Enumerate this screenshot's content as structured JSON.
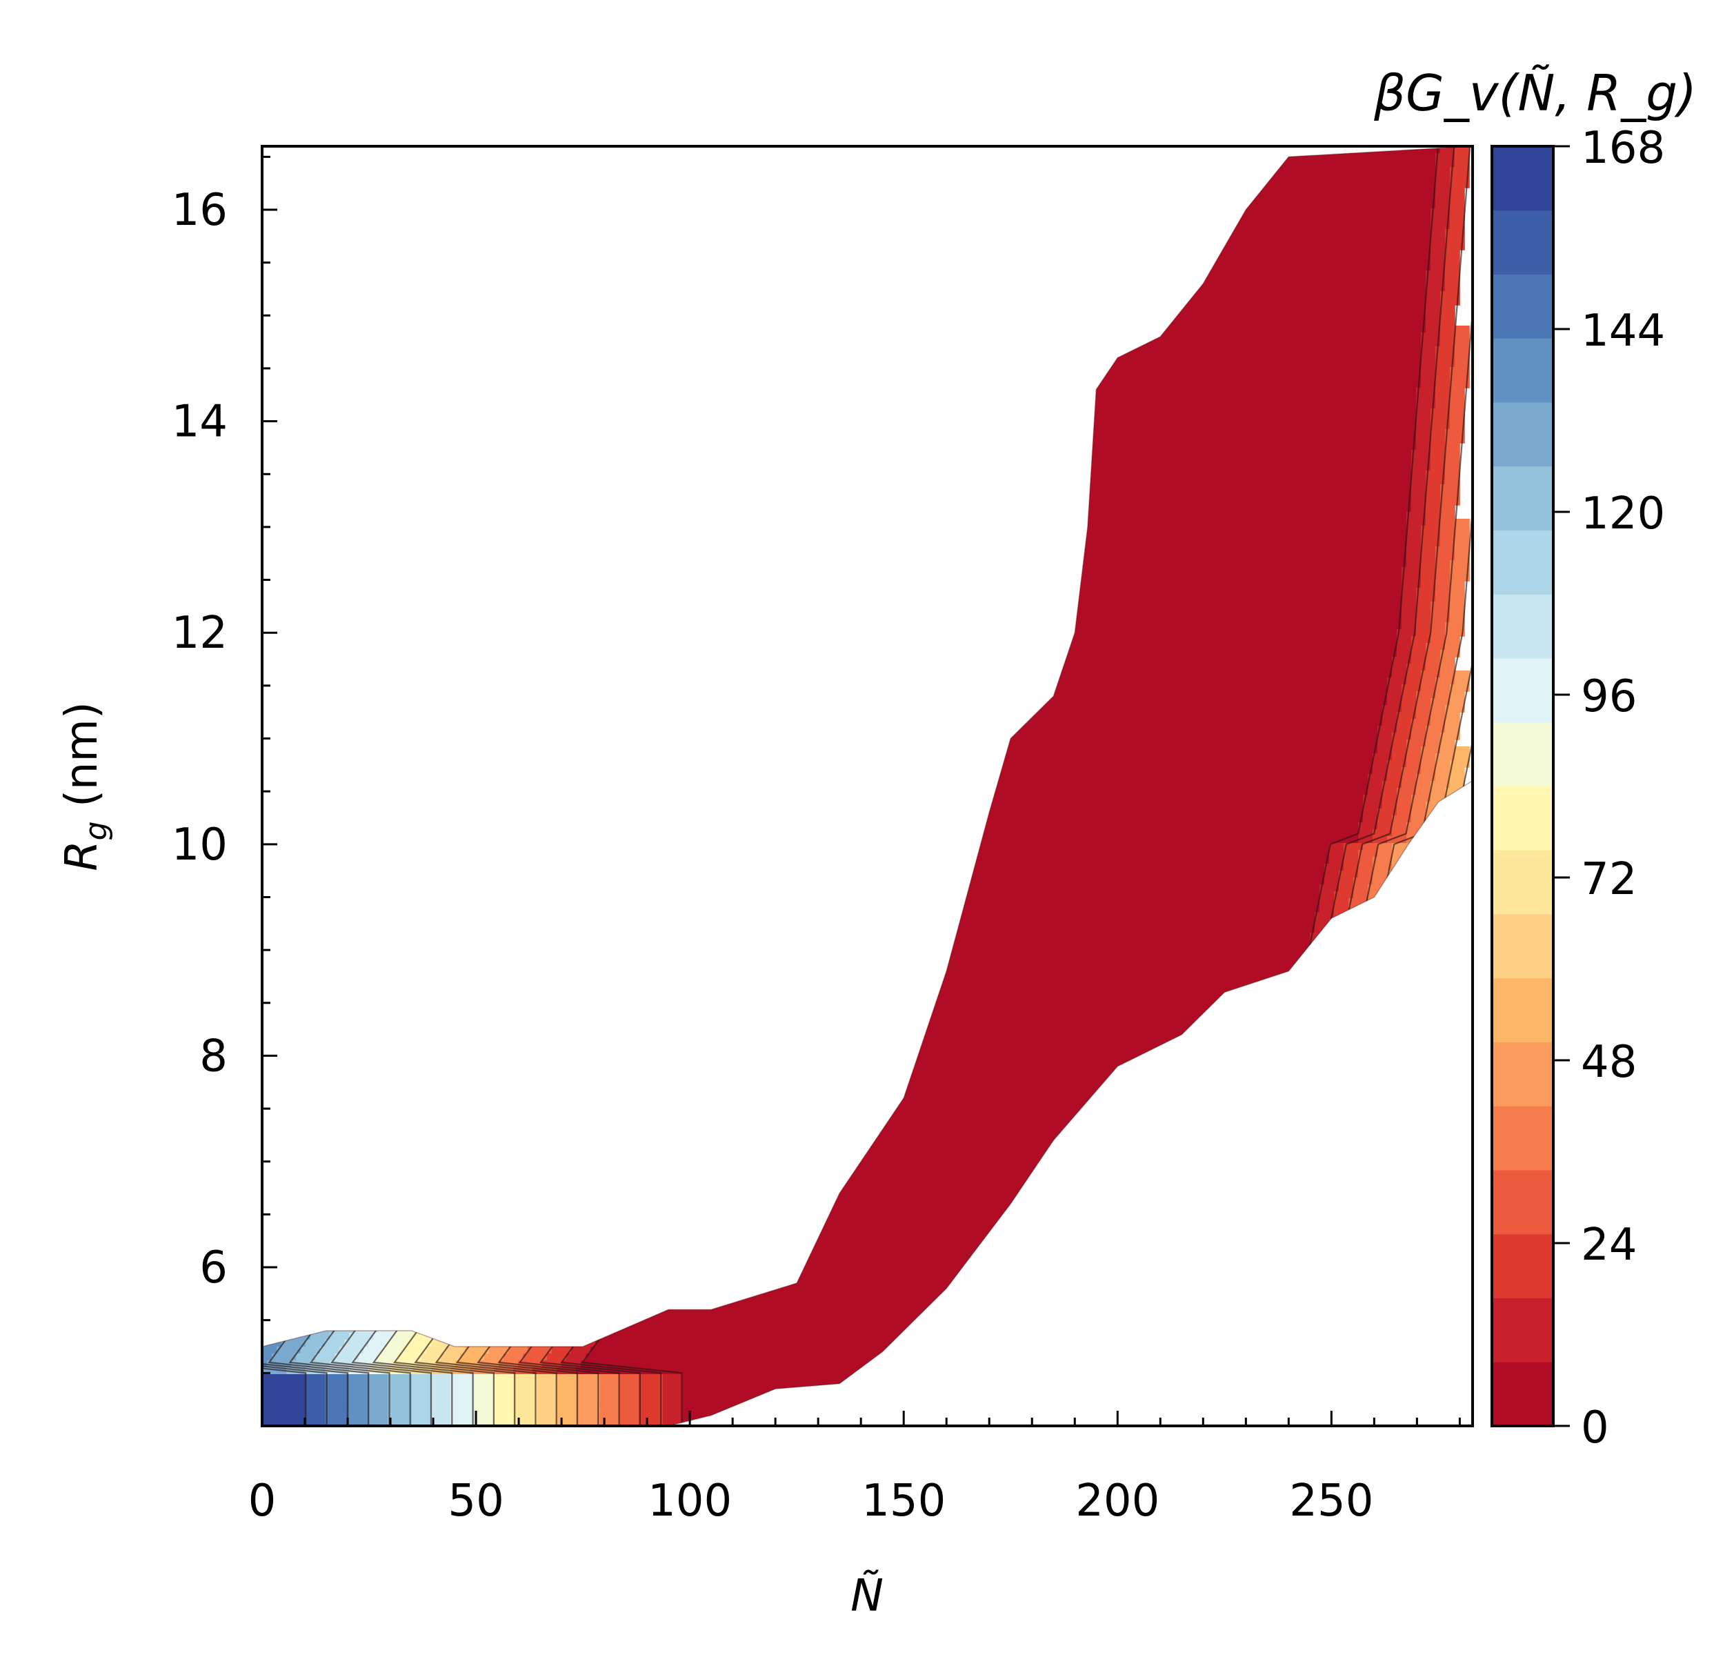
{
  "chart_data": {
    "type": "heatmap",
    "subtype": "filled-contour",
    "xlabel": "Ñ",
    "ylabel_main": "R",
    "ylabel_sub": "g",
    "ylabel_unit": " (nm)",
    "colorbar_label": "βG_v(Ñ, R_g)",
    "xlim": [
      0,
      283
    ],
    "ylim": [
      4.5,
      16.6
    ],
    "x_ticks": [
      0,
      50,
      100,
      150,
      200,
      250
    ],
    "y_ticks": [
      6,
      8,
      10,
      12,
      14,
      16
    ],
    "colorbar_ticks": [
      0,
      24,
      48,
      72,
      96,
      120,
      144,
      168
    ],
    "colorbar_range": [
      0,
      168
    ],
    "contour_levels": [
      0,
      8,
      16,
      24,
      32,
      40,
      48,
      56,
      64,
      72,
      80,
      88,
      96,
      104,
      112,
      120,
      128,
      136,
      144,
      152,
      160,
      168
    ],
    "colormap": "RdYlBu",
    "colors": [
      "#b10c25",
      "#c8212c",
      "#de3a2f",
      "#ee5a3d",
      "#f77c4d",
      "#fb9b5e",
      "#fdb668",
      "#fdd084",
      "#fee79b",
      "#fff7b2",
      "#f4fad6",
      "#e0f3f7",
      "#c7e6ef",
      "#acd6e7",
      "#93c2dd",
      "#7aa9cf",
      "#6190c3",
      "#4b77b6",
      "#3d5ea8",
      "#314598"
    ],
    "region": {
      "description_points_upper": [
        [
          0,
          5.25
        ],
        [
          15,
          5.4
        ],
        [
          35,
          5.4
        ],
        [
          45,
          5.25
        ],
        [
          75,
          5.25
        ],
        [
          95,
          5.6
        ],
        [
          105,
          5.6
        ],
        [
          125,
          5.85
        ],
        [
          135,
          6.7
        ],
        [
          150,
          7.6
        ],
        [
          160,
          8.8
        ],
        [
          170,
          10.3
        ],
        [
          175,
          11.0
        ],
        [
          185,
          11.4
        ],
        [
          190,
          12.0
        ],
        [
          193,
          13.0
        ],
        [
          195,
          14.3
        ],
        [
          200,
          14.6
        ],
        [
          210,
          14.8
        ],
        [
          220,
          15.3
        ],
        [
          230,
          16.0
        ],
        [
          240,
          16.5
        ],
        [
          283,
          16.6
        ]
      ],
      "description_points_lower": [
        [
          283,
          10.6
        ],
        [
          275,
          10.4
        ],
        [
          268,
          10.0
        ],
        [
          260,
          9.5
        ],
        [
          250,
          9.3
        ],
        [
          240,
          8.8
        ],
        [
          225,
          8.6
        ],
        [
          215,
          8.2
        ],
        [
          200,
          7.9
        ],
        [
          185,
          7.2
        ],
        [
          175,
          6.6
        ],
        [
          160,
          5.8
        ],
        [
          145,
          5.2
        ],
        [
          135,
          4.9
        ],
        [
          120,
          4.85
        ],
        [
          105,
          4.6
        ],
        [
          95,
          4.5
        ],
        [
          0,
          4.5
        ]
      ],
      "minimum_basin": {
        "n_center": 175,
        "rg_center": 10.0,
        "value": 0
      }
    }
  }
}
